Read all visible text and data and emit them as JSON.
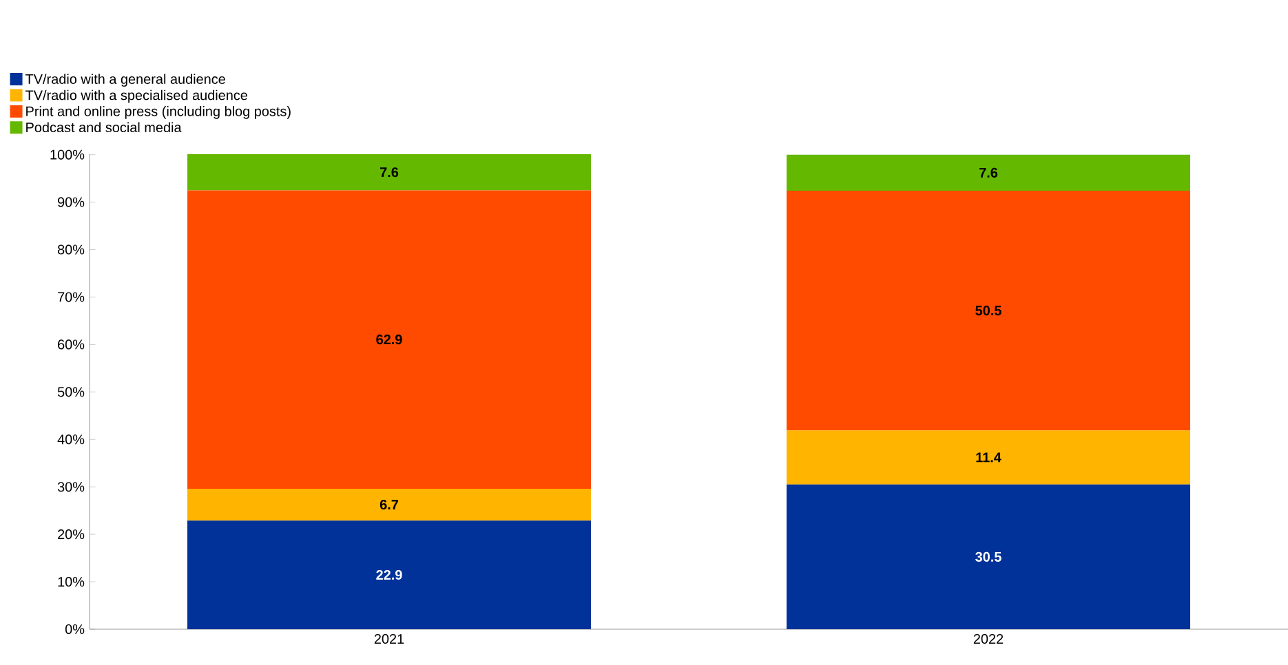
{
  "chart_data": {
    "type": "bar",
    "stacked": true,
    "categories": [
      "2021",
      "2022"
    ],
    "series": [
      {
        "name": "TV/radio with a general audience",
        "color": "#003299",
        "values": [
          22.9,
          30.5
        ]
      },
      {
        "name": "TV/radio with a specialised audience",
        "color": "#ffb400",
        "values": [
          6.7,
          11.4
        ]
      },
      {
        "name": "Print and online press (including blog posts)",
        "color": "#ff4b00",
        "values": [
          62.9,
          50.5
        ]
      },
      {
        "name": "Podcast and social media",
        "color": "#65b800",
        "values": [
          7.6,
          7.6
        ]
      }
    ],
    "ylim": [
      0,
      100.1
    ],
    "yticks": [
      {
        "value": 0,
        "label": "0%"
      },
      {
        "value": 10,
        "label": "10%"
      },
      {
        "value": 20,
        "label": "20%"
      },
      {
        "value": 30,
        "label": "30%"
      },
      {
        "value": 40,
        "label": "40%"
      },
      {
        "value": 50,
        "label": "50%"
      },
      {
        "value": 60,
        "label": "60%"
      },
      {
        "value": 70,
        "label": "70%"
      },
      {
        "value": 80,
        "label": "80%"
      },
      {
        "value": 90,
        "label": "90%"
      },
      {
        "value": 100,
        "label": "100%"
      }
    ],
    "data_labels": true,
    "legend": "top left"
  }
}
